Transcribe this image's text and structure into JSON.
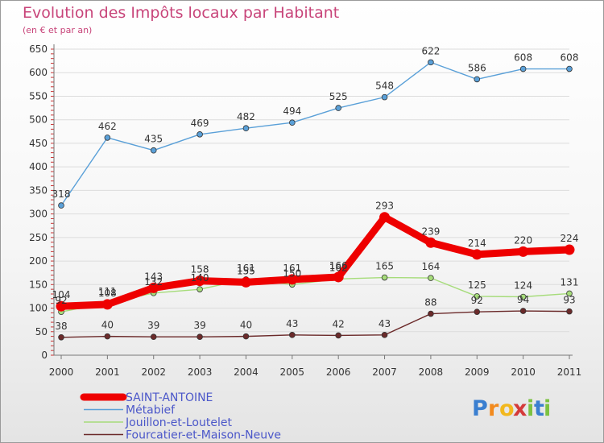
{
  "chart_data": {
    "type": "line",
    "title": "Evolution des Impôts locaux par Habitant",
    "subtitle": "(en € et par an)",
    "x": [
      "2000",
      "2001",
      "2002",
      "2003",
      "2004",
      "2005",
      "2006",
      "2007",
      "2008",
      "2009",
      "2010",
      "2011"
    ],
    "ylim": [
      0,
      650
    ],
    "yticks": [
      0,
      50,
      100,
      150,
      200,
      250,
      300,
      350,
      400,
      450,
      500,
      550,
      600,
      650
    ],
    "grid": "horizontal",
    "legend_position": "bottom-left",
    "series": [
      {
        "name": "Métabief",
        "color": "#5aa0d8",
        "values": [
          318,
          462,
          435,
          469,
          482,
          494,
          525,
          548,
          622,
          586,
          608,
          608
        ]
      },
      {
        "name": "Jouillon-et-Loutelet",
        "color": "#a6dc7a",
        "values": [
          92,
          111,
          132,
          140,
          161,
          150,
          162,
          165,
          164,
          125,
          124,
          131
        ]
      },
      {
        "name": "Fourcatier-et-Maison-Neuve",
        "color": "#6b2a2a",
        "values": [
          38,
          40,
          39,
          39,
          40,
          43,
          42,
          43,
          88,
          92,
          94,
          93
        ]
      },
      {
        "name": "SAINT-ANTOINE",
        "color": "#ee0000",
        "values": [
          104,
          108,
          143,
          158,
          155,
          161,
          166,
          293,
          239,
          214,
          220,
          224
        ],
        "emphasis": true
      }
    ],
    "value_labels": {
      "Métabief": [
        "318",
        "462",
        "435",
        "469",
        "482",
        "494",
        "525",
        "548",
        "622",
        "586",
        "608",
        "608"
      ],
      "Jouillon-et-Loutelet": [
        "92",
        "111",
        "132",
        "140",
        "161",
        "150",
        "162",
        "165",
        "164",
        "125",
        "124",
        "131"
      ],
      "Fourcatier-et-Maison-Neuve": [
        "38",
        "40",
        "39",
        "39",
        "40",
        "43",
        "42",
        "43",
        "88",
        "92",
        "94",
        "93"
      ],
      "SAINT-ANTOINE": [
        "104",
        "108",
        "143",
        "158",
        "155",
        "161",
        "166",
        "293",
        "239",
        "214",
        "220",
        "224"
      ]
    }
  },
  "legend": [
    {
      "label": "SAINT-ANTOINE",
      "color": "#ee0000"
    },
    {
      "label": "Métabief",
      "color": "#5aa0d8"
    },
    {
      "label": "Jouillon-et-Loutelet",
      "color": "#a6dc7a"
    },
    {
      "label": "Fourcatier-et-Maison-Neuve",
      "color": "#6b2a2a"
    }
  ],
  "brand": {
    "letters": [
      "P",
      "r",
      "o",
      "x",
      "i",
      "t",
      "i"
    ],
    "colors": [
      "#3a7fd0",
      "#f28a1e",
      "#f2b81e",
      "#d43a3a",
      "#7cc241",
      "#3a7fd0",
      "#7cc241"
    ]
  }
}
